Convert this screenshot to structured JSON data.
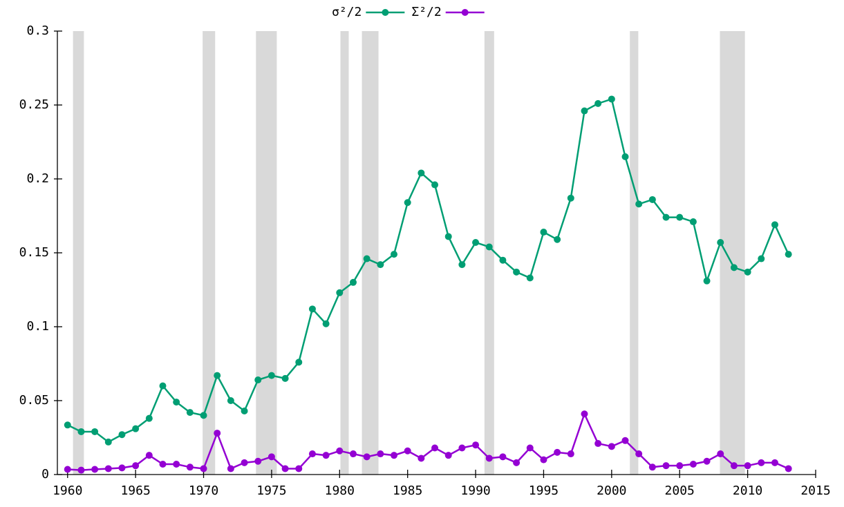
{
  "chart_data": {
    "type": "line",
    "series": [
      {
        "name": "σ²/2",
        "color": "#009e73",
        "values": [
          0.0335,
          0.029,
          0.029,
          0.022,
          0.027,
          0.031,
          0.038,
          0.06,
          0.049,
          0.042,
          0.04,
          0.067,
          0.05,
          0.043,
          0.064,
          0.067,
          0.065,
          0.076,
          0.112,
          0.102,
          0.123,
          0.13,
          0.146,
          0.142,
          0.149,
          0.184,
          0.204,
          0.196,
          0.161,
          0.142,
          0.157,
          0.154,
          0.145,
          0.137,
          0.133,
          0.164,
          0.159,
          0.187,
          0.246,
          0.251,
          0.254,
          0.215,
          0.183,
          0.186,
          0.174,
          0.174,
          0.171,
          0.131,
          0.157,
          0.14,
          0.137,
          0.146,
          0.169,
          0.149
        ]
      },
      {
        "name": "Σ²/2",
        "color": "#9400d3",
        "values": [
          0.0035,
          0.003,
          0.0035,
          0.004,
          0.0045,
          0.006,
          0.013,
          0.007,
          0.007,
          0.005,
          0.004,
          0.028,
          0.004,
          0.008,
          0.009,
          0.012,
          0.004,
          0.004,
          0.014,
          0.013,
          0.016,
          0.014,
          0.012,
          0.014,
          0.013,
          0.016,
          0.011,
          0.018,
          0.013,
          0.018,
          0.02,
          0.011,
          0.012,
          0.008,
          0.018,
          0.01,
          0.015,
          0.014,
          0.041,
          0.021,
          0.019,
          0.023,
          0.014,
          0.005,
          0.006,
          0.006,
          0.007,
          0.009,
          0.014,
          0.006,
          0.006,
          0.008,
          0.008,
          0.004
        ]
      }
    ],
    "x": [
      1960,
      1961,
      1962,
      1963,
      1964,
      1965,
      1966,
      1967,
      1968,
      1969,
      1970,
      1971,
      1972,
      1973,
      1974,
      1975,
      1976,
      1977,
      1978,
      1979,
      1980,
      1981,
      1982,
      1983,
      1984,
      1985,
      1986,
      1987,
      1988,
      1989,
      1990,
      1991,
      1992,
      1993,
      1994,
      1995,
      1996,
      1997,
      1998,
      1999,
      2000,
      2001,
      2002,
      2003,
      2004,
      2005,
      2006,
      2007,
      2008,
      2009,
      2010,
      2011,
      2012,
      2013
    ],
    "xlim": [
      1959.25,
      2015
    ],
    "xticks": [
      1960,
      1965,
      1970,
      1975,
      1980,
      1985,
      1990,
      1995,
      2000,
      2005,
      2010,
      2015
    ],
    "ylim": [
      0,
      0.3
    ],
    "yticks": [
      0,
      0.05,
      0.1,
      0.15,
      0.2,
      0.25,
      0.3
    ],
    "shaded_regions": [
      [
        1960.4,
        1961.2
      ],
      [
        1969.93,
        1970.85
      ],
      [
        1973.85,
        1975.38
      ],
      [
        1980.06,
        1980.67
      ],
      [
        1981.64,
        1982.86
      ],
      [
        1990.65,
        1991.36
      ],
      [
        2001.34,
        2001.96
      ],
      [
        2007.96,
        2009.8
      ]
    ],
    "shade_color": "#d9d9d9",
    "legend": "top"
  }
}
